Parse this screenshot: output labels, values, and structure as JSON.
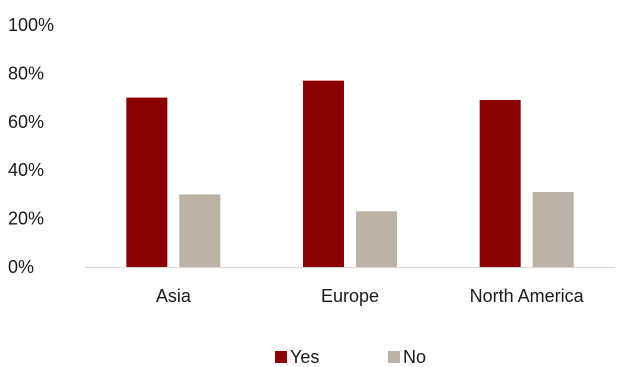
{
  "chart_data": {
    "type": "bar",
    "categories": [
      "Asia",
      "Europe",
      "North America"
    ],
    "series": [
      {
        "name": "Yes",
        "values": [
          70,
          77,
          69
        ],
        "color": "#8b0000"
      },
      {
        "name": "No",
        "values": [
          30,
          23,
          31
        ],
        "color": "#bcb3a6"
      }
    ],
    "ylim": [
      0,
      100
    ],
    "yticks": [
      "0%",
      "20%",
      "40%",
      "60%",
      "80%",
      "100%"
    ],
    "ytick_values": [
      0,
      20,
      40,
      60,
      80,
      100
    ],
    "grid": false,
    "legend_position": "bottom",
    "axis_color": "#d9d9d9"
  }
}
